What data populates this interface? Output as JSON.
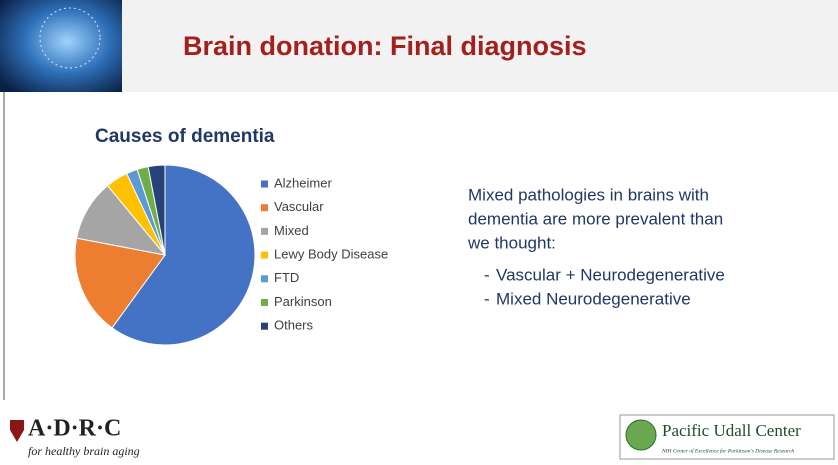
{
  "slide": {
    "title": "Brain donation: Final diagnosis",
    "text": [
      "Mixed pathologies in brains with",
      "dementia are more prevalent than",
      "we thought:"
    ],
    "bullets": [
      {
        "marker": "-",
        "text": "Vascular + Neurodegenerative"
      },
      {
        "marker": "-",
        "text": "Mixed Neurodegenerative"
      }
    ],
    "logo_left": {
      "name": "A·D·R·C",
      "tagline": "for healthy brain aging"
    },
    "logo_right": {
      "name": "Pacific Udall Center",
      "tagline": "NIH Center of Excellence for Parkinson's Disease Research"
    }
  },
  "chart_data": {
    "type": "pie",
    "title": "Causes of dementia",
    "categories": [
      "Alzheimer",
      "Vascular",
      "Mixed",
      "Lewy Body Disease",
      "FTD",
      "Parkinson",
      "Others"
    ],
    "values": [
      60,
      18,
      11,
      4,
      2,
      2,
      3
    ],
    "colors": [
      "#4472c4",
      "#ed7d31",
      "#a5a5a5",
      "#ffc000",
      "#5b9bd5",
      "#70ad47",
      "#264478"
    ],
    "legend": "right"
  }
}
